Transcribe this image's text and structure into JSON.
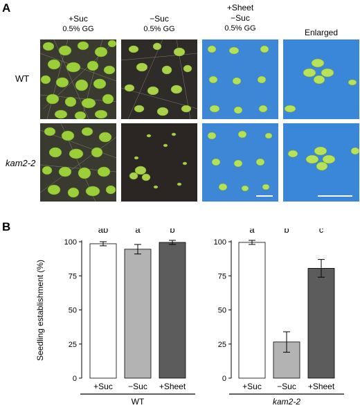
{
  "panel_a": {
    "letter": "A",
    "columns": [
      {
        "line1": "+Suc",
        "line2": "0.5% GG",
        "line3": ""
      },
      {
        "line1": "−Suc",
        "line2": "0.5% GG",
        "line3": ""
      },
      {
        "line1": "+Sheet",
        "line2": "−Suc",
        "line3": "0.5% GG"
      },
      {
        "line1": "Enlarged",
        "line2": "",
        "line3": ""
      }
    ],
    "rows": [
      "WT",
      "kam2-2"
    ]
  },
  "panel_b": {
    "letter": "B"
  },
  "chart_data": [
    {
      "type": "bar",
      "group_label": "WT",
      "ylabel": "Seedling establishment (%)",
      "ylim": [
        0,
        100
      ],
      "yticks": [
        0,
        25,
        50,
        75,
        100
      ],
      "categories": [
        "+Suc",
        "−Suc",
        "+Sheet"
      ],
      "values": [
        98.5,
        94.5,
        99.5
      ],
      "errors": [
        1.5,
        3.5,
        1.5
      ],
      "letters": [
        "ab",
        "a",
        "b"
      ],
      "colors": [
        "#ffffff",
        "#b3b3b3",
        "#5c5c5c"
      ]
    },
    {
      "type": "bar",
      "group_label": "kam2-2",
      "ylim": [
        0,
        100
      ],
      "yticks": [
        0,
        25,
        50,
        75,
        100
      ],
      "categories": [
        "+Suc",
        "−Suc",
        "+Sheet"
      ],
      "values": [
        99.5,
        26.5,
        80.5
      ],
      "errors": [
        1.5,
        7.5,
        6.5
      ],
      "letters": [
        "a",
        "b",
        "c"
      ],
      "colors": [
        "#ffffff",
        "#b3b3b3",
        "#5c5c5c"
      ]
    }
  ]
}
